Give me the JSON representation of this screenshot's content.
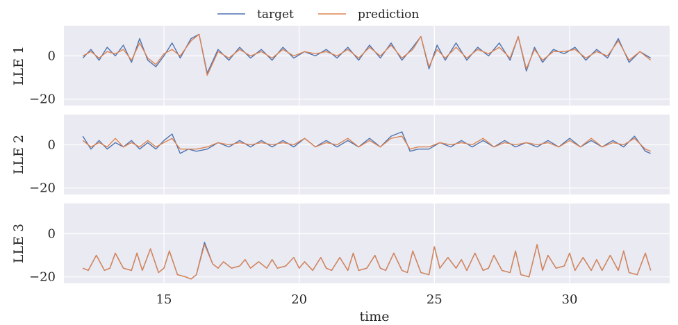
{
  "chart_data": {
    "type": "line",
    "xlabel": "time",
    "xlim": [
      11.3,
      33.7
    ],
    "xticks": [
      15,
      20,
      25,
      30
    ],
    "grid": true,
    "legend": {
      "placement": "top-center",
      "entries": [
        {
          "name": "target",
          "color": "#4c72b0"
        },
        {
          "name": "prediction",
          "color": "#dd8452"
        }
      ]
    },
    "panels": [
      {
        "ylabel": "LLE 1",
        "ylim": [
          -23,
          14
        ],
        "yticks": [
          0,
          -20
        ],
        "series": [
          {
            "name": "target",
            "color": "#4c72b0",
            "x": [
              12.0,
              12.3,
              12.6,
              12.9,
              13.2,
              13.5,
              13.8,
              14.1,
              14.4,
              14.7,
              15.0,
              15.3,
              15.6,
              16.0,
              16.3,
              16.6,
              17.0,
              17.4,
              17.8,
              18.2,
              18.6,
              19.0,
              19.4,
              19.8,
              20.2,
              20.6,
              21.0,
              21.4,
              21.8,
              22.2,
              22.6,
              23.0,
              23.4,
              23.8,
              24.2,
              24.5,
              24.8,
              25.1,
              25.4,
              25.8,
              26.2,
              26.6,
              27.0,
              27.4,
              27.8,
              28.1,
              28.4,
              28.7,
              29.0,
              29.4,
              29.8,
              30.2,
              30.6,
              31.0,
              31.4,
              31.8,
              32.2,
              32.6,
              33.0
            ],
            "y": [
              -1,
              3,
              -2,
              4,
              0,
              5,
              -3,
              8,
              -2,
              -5,
              0,
              6,
              -1,
              8,
              10,
              -8,
              3,
              -2,
              4,
              -1,
              3,
              -2,
              4,
              -1,
              2,
              0,
              3,
              -1,
              4,
              -2,
              5,
              -1,
              6,
              -2,
              4,
              9,
              -6,
              5,
              -2,
              6,
              -2,
              4,
              0,
              6,
              -2,
              9,
              -7,
              4,
              -3,
              3,
              1,
              4,
              -2,
              3,
              -1,
              8,
              -3,
              2,
              -1
            ]
          },
          {
            "name": "prediction",
            "color": "#dd8452",
            "x": [
              12.0,
              12.3,
              12.6,
              12.9,
              13.2,
              13.5,
              13.8,
              14.1,
              14.4,
              14.7,
              15.0,
              15.3,
              15.6,
              16.0,
              16.3,
              16.6,
              17.0,
              17.4,
              17.8,
              18.2,
              18.6,
              19.0,
              19.4,
              19.8,
              20.2,
              20.6,
              21.0,
              21.4,
              21.8,
              22.2,
              22.6,
              23.0,
              23.4,
              23.8,
              24.2,
              24.5,
              24.8,
              25.1,
              25.4,
              25.8,
              26.2,
              26.6,
              27.0,
              27.4,
              27.8,
              28.1,
              28.4,
              28.7,
              29.0,
              29.4,
              29.8,
              30.2,
              30.6,
              31.0,
              31.4,
              31.8,
              32.2,
              32.6,
              33.0
            ],
            "y": [
              0,
              2,
              -1,
              2,
              1,
              3,
              -2,
              6,
              -1,
              -4,
              1,
              3,
              0,
              7,
              10,
              -9,
              2,
              -1,
              3,
              0,
              2,
              -1,
              3,
              0,
              2,
              1,
              2,
              0,
              3,
              -1,
              4,
              0,
              5,
              -1,
              3,
              9,
              -5,
              3,
              -1,
              4,
              -1,
              3,
              1,
              4,
              -1,
              9,
              -6,
              3,
              -2,
              2,
              2,
              3,
              -1,
              2,
              0,
              7,
              -2,
              2,
              -2
            ]
          }
        ]
      },
      {
        "ylabel": "LLE 2",
        "ylim": [
          -23,
          14
        ],
        "yticks": [
          0,
          -20
        ],
        "series": [
          {
            "name": "target",
            "color": "#4c72b0",
            "x": [
              12.0,
              12.3,
              12.6,
              12.9,
              13.2,
              13.5,
              13.8,
              14.1,
              14.4,
              14.7,
              15.0,
              15.3,
              15.6,
              15.9,
              16.2,
              16.6,
              17.0,
              17.4,
              17.8,
              18.2,
              18.6,
              19.0,
              19.4,
              19.8,
              20.2,
              20.6,
              21.0,
              21.4,
              21.8,
              22.2,
              22.6,
              23.0,
              23.4,
              23.8,
              24.1,
              24.4,
              24.8,
              25.2,
              25.6,
              26.0,
              26.4,
              26.8,
              27.2,
              27.6,
              28.0,
              28.4,
              28.8,
              29.2,
              29.6,
              30.0,
              30.4,
              30.8,
              31.2,
              31.6,
              32.0,
              32.4,
              32.8,
              33.0
            ],
            "y": [
              4,
              -2,
              2,
              -2,
              1,
              -1,
              2,
              -2,
              1,
              -2,
              2,
              5,
              -4,
              -2,
              -3,
              -2,
              1,
              -1,
              2,
              -1,
              2,
              -1,
              2,
              -1,
              3,
              -1,
              2,
              -1,
              2,
              -1,
              3,
              -1,
              4,
              6,
              -3,
              -2,
              -2,
              1,
              -1,
              2,
              -1,
              2,
              -1,
              2,
              -1,
              1,
              -1,
              2,
              -1,
              3,
              -1,
              2,
              -1,
              2,
              -1,
              4,
              -3,
              -4
            ]
          },
          {
            "name": "prediction",
            "color": "#dd8452",
            "x": [
              12.0,
              12.3,
              12.6,
              12.9,
              13.2,
              13.5,
              13.8,
              14.1,
              14.4,
              14.7,
              15.0,
              15.3,
              15.6,
              15.9,
              16.2,
              16.6,
              17.0,
              17.4,
              17.8,
              18.2,
              18.6,
              19.0,
              19.4,
              19.8,
              20.2,
              20.6,
              21.0,
              21.4,
              21.8,
              22.2,
              22.6,
              23.0,
              23.4,
              23.8,
              24.1,
              24.4,
              24.8,
              25.2,
              25.6,
              26.0,
              26.4,
              26.8,
              27.2,
              27.6,
              28.0,
              28.4,
              28.8,
              29.2,
              29.6,
              30.0,
              30.4,
              30.8,
              31.2,
              31.6,
              32.0,
              32.4,
              32.8,
              33.0
            ],
            "y": [
              2,
              -1,
              1,
              -1,
              3,
              -1,
              1,
              -1,
              2,
              -1,
              1,
              3,
              -2,
              -2,
              -2,
              -1,
              1,
              0,
              1,
              0,
              1,
              0,
              1,
              0,
              3,
              -1,
              1,
              0,
              3,
              -1,
              2,
              -1,
              3,
              4,
              -2,
              -1,
              -1,
              1,
              0,
              1,
              0,
              3,
              -1,
              1,
              0,
              1,
              0,
              1,
              -1,
              2,
              -1,
              3,
              -1,
              1,
              0,
              3,
              -2,
              -3
            ]
          }
        ]
      },
      {
        "ylabel": "LLE 3",
        "ylim": [
          -23,
          14
        ],
        "yticks": [
          0,
          -20
        ],
        "series": [
          {
            "name": "target",
            "color": "#4c72b0",
            "x": [
              12.0,
              12.2,
              12.5,
              12.8,
              13.0,
              13.2,
              13.5,
              13.8,
              14.0,
              14.2,
              14.5,
              14.8,
              15.0,
              15.2,
              15.5,
              15.8,
              16.0,
              16.2,
              16.5,
              16.8,
              17.0,
              17.2,
              17.5,
              17.8,
              18.0,
              18.2,
              18.5,
              18.8,
              19.0,
              19.2,
              19.5,
              19.8,
              20.0,
              20.2,
              20.5,
              20.8,
              21.0,
              21.2,
              21.5,
              21.8,
              22.0,
              22.2,
              22.5,
              22.8,
              23.0,
              23.2,
              23.5,
              23.8,
              24.0,
              24.2,
              24.5,
              24.8,
              25.0,
              25.2,
              25.5,
              25.8,
              26.0,
              26.2,
              26.5,
              26.8,
              27.0,
              27.2,
              27.5,
              27.8,
              28.0,
              28.2,
              28.5,
              28.8,
              29.0,
              29.2,
              29.5,
              29.8,
              30.0,
              30.2,
              30.5,
              30.8,
              31.0,
              31.2,
              31.5,
              31.8,
              32.0,
              32.2,
              32.5,
              32.8,
              33.0
            ],
            "y": [
              -16,
              -17,
              -10,
              -17,
              -16,
              -9,
              -16,
              -17,
              -9,
              -17,
              -7,
              -18,
              -16,
              -8,
              -19,
              -20,
              -21,
              -19,
              -4,
              -14,
              -16,
              -13,
              -16,
              -15,
              -12,
              -16,
              -13,
              -16,
              -12,
              -16,
              -15,
              -11,
              -16,
              -13,
              -17,
              -11,
              -16,
              -17,
              -11,
              -17,
              -9,
              -17,
              -16,
              -10,
              -16,
              -17,
              -9,
              -17,
              -18,
              -8,
              -18,
              -19,
              -6,
              -16,
              -11,
              -16,
              -12,
              -17,
              -9,
              -17,
              -16,
              -10,
              -17,
              -18,
              -8,
              -19,
              -20,
              -5,
              -17,
              -10,
              -16,
              -15,
              -9,
              -17,
              -11,
              -17,
              -12,
              -17,
              -10,
              -17,
              -8,
              -18,
              -19,
              -9,
              -17
            ]
          },
          {
            "name": "prediction",
            "color": "#dd8452",
            "x": [
              12.0,
              12.2,
              12.5,
              12.8,
              13.0,
              13.2,
              13.5,
              13.8,
              14.0,
              14.2,
              14.5,
              14.8,
              15.0,
              15.2,
              15.5,
              15.8,
              16.0,
              16.2,
              16.5,
              16.8,
              17.0,
              17.2,
              17.5,
              17.8,
              18.0,
              18.2,
              18.5,
              18.8,
              19.0,
              19.2,
              19.5,
              19.8,
              20.0,
              20.2,
              20.5,
              20.8,
              21.0,
              21.2,
              21.5,
              21.8,
              22.0,
              22.2,
              22.5,
              22.8,
              23.0,
              23.2,
              23.5,
              23.8,
              24.0,
              24.2,
              24.5,
              24.8,
              25.0,
              25.2,
              25.5,
              25.8,
              26.0,
              26.2,
              26.5,
              26.8,
              27.0,
              27.2,
              27.5,
              27.8,
              28.0,
              28.2,
              28.5,
              28.8,
              29.0,
              29.2,
              29.5,
              29.8,
              30.0,
              30.2,
              30.5,
              30.8,
              31.0,
              31.2,
              31.5,
              31.8,
              32.0,
              32.2,
              32.5,
              32.8,
              33.0
            ],
            "y": [
              -16,
              -17,
              -10,
              -17,
              -16,
              -9,
              -16,
              -17,
              -9,
              -17,
              -7,
              -18,
              -16,
              -8,
              -19,
              -20,
              -21,
              -19,
              -5,
              -14,
              -16,
              -13,
              -16,
              -15,
              -12,
              -16,
              -13,
              -16,
              -12,
              -16,
              -15,
              -11,
              -16,
              -13,
              -17,
              -11,
              -16,
              -17,
              -11,
              -17,
              -9,
              -17,
              -16,
              -10,
              -16,
              -17,
              -9,
              -17,
              -18,
              -8,
              -18,
              -19,
              -6,
              -16,
              -11,
              -16,
              -12,
              -17,
              -9,
              -17,
              -16,
              -10,
              -17,
              -18,
              -8,
              -19,
              -20,
              -5,
              -17,
              -10,
              -16,
              -15,
              -9,
              -17,
              -11,
              -17,
              -12,
              -17,
              -10,
              -17,
              -8,
              -18,
              -19,
              -9,
              -17
            ]
          }
        ]
      }
    ]
  }
}
